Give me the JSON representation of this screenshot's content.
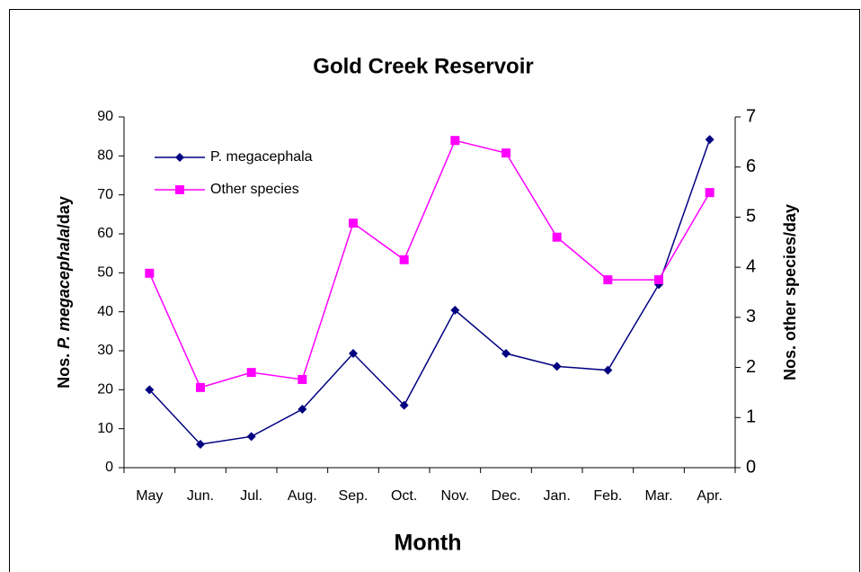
{
  "chart_data": {
    "type": "line",
    "title": "Gold Creek Reservoir",
    "xlabel": "Month",
    "ylabel_parts": [
      "Nos. ",
      "P. megacephala",
      "/day"
    ],
    "y2label": "Nos. other species/day",
    "categories": [
      "May",
      "Jun.",
      "Jul.",
      "Aug.",
      "Sep.",
      "Oct.",
      "Nov.",
      "Dec.",
      "Jan.",
      "Feb.",
      "Mar.",
      "Apr."
    ],
    "series": [
      {
        "name": "P. megacephala",
        "color": "#000080",
        "marker": "diamond",
        "values": [
          20,
          6,
          8,
          15,
          29.3,
          16,
          40.4,
          29.3,
          26,
          25,
          47,
          84.2
        ]
      },
      {
        "name": "Other species",
        "color": "#ff00ff",
        "marker": "square",
        "axis": "y2",
        "values": [
          3.88,
          1.6,
          1.9,
          1.76,
          4.88,
          4.15,
          6.53,
          6.28,
          4.6,
          3.75,
          3.75,
          5.49
        ]
      }
    ],
    "ylim": [
      0,
      90
    ],
    "yticks": [
      0,
      10,
      20,
      30,
      40,
      50,
      60,
      70,
      80,
      90
    ],
    "y2lim": [
      0,
      7
    ],
    "y2ticks": [
      0,
      1,
      2,
      3,
      4,
      5,
      6,
      7
    ],
    "legend": "upper left",
    "grid": false
  }
}
